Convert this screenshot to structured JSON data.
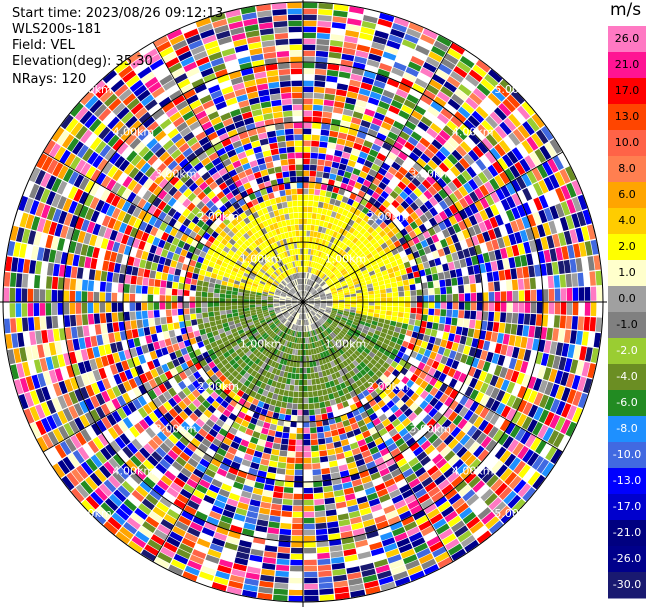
{
  "header": {
    "start_time": "Start time: 2023/08/26 09:12:13",
    "site": "WLS200s-181",
    "field": "Field: VEL",
    "elevation": "Elevation(deg): 35.30",
    "nrays": "NRays: 120"
  },
  "chart_data": {
    "type": "heatmap",
    "projection": "polar",
    "title": "",
    "field": "VEL",
    "units": "m/s",
    "n_rays": 120,
    "range_rings_km": [
      1.0,
      2.0,
      3.0,
      4.0,
      5.0
    ],
    "range_ring_labels": [
      "1.00km",
      "2.00km",
      "3.00km",
      "4.00km",
      "5.00km"
    ],
    "max_range_km": 5.0,
    "colorbar": {
      "label": "m/s",
      "ticks": [
        "26.0",
        "21.0",
        "17.0",
        "13.0",
        "10.0",
        "8.0",
        "6.0",
        "4.0",
        "2.0",
        "1.0",
        "0.0",
        "-1.0",
        "-2.0",
        "-4.0",
        "-6.0",
        "-8.0",
        "-10.0",
        "-13.0",
        "-17.0",
        "-21.0",
        "-26.0",
        "-30.0"
      ],
      "colors": [
        "#ff79c3",
        "#ff1493",
        "#ff0000",
        "#ff4500",
        "#ff6347",
        "#ff7f50",
        "#ffa500",
        "#ffcc00",
        "#ffff00",
        "#ffffcc",
        "#a0a0a0",
        "#808080",
        "#9acd32",
        "#6b8e23",
        "#228b22",
        "#1e90ff",
        "#4169e1",
        "#0000ff",
        "#0000cd",
        "#000080",
        "#00008b",
        "#191970"
      ]
    },
    "pattern_description_levels": {
      "inner_near_zero": [
        0.0,
        1.0,
        -1.0
      ],
      "inner_positive_sector_value": 2.0,
      "inner_negative_sector_value": -4.0
    }
  }
}
